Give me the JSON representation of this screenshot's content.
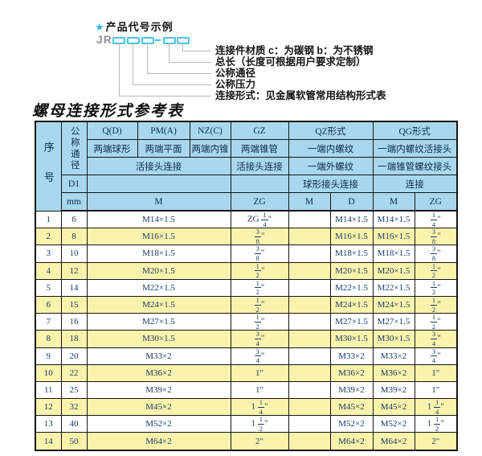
{
  "diagram": {
    "star_icon": "★",
    "example_label": "产品代号示例",
    "code_prefix": "JR",
    "callouts": [
      "连接件材质  c：为碳钢  b：为不锈钢",
      "总长（长度可根据用户要求定制）",
      "公称通径",
      "公称压力",
      "连接形式：见金属软管常用结构形式表"
    ]
  },
  "title": "螺母连接形式参考表",
  "table": {
    "header": {
      "seq": "序号",
      "dn": "公称通径",
      "d1": "D1",
      "mm": "mm",
      "col_q": "Q(D)",
      "col_pm": "PM(A)",
      "col_nz": "NZ(C)",
      "col_gz": "GZ",
      "col_qz": "QZ形式",
      "col_qg": "QG形式",
      "q_desc": "两端球形",
      "pm_desc": "两端平面",
      "nz_desc": "两端内锥",
      "gz_desc": "两端锥管",
      "qz_desc": "一端内螺纹",
      "qg_desc": "一端内螺纹活接头",
      "qpmnz_conn": "活接头连接",
      "gz_conn": "活接头连接",
      "qz_conn": "一端外螺纹",
      "qg_conn": "一端锥管螺纹接头",
      "qz_conn2": "球形接头连接",
      "qg_conn2": "连接",
      "m_label": "M",
      "zg_label": "ZG",
      "qz_m": "M",
      "qz_d": "D",
      "qg_m": "M",
      "qg_zg": "ZG"
    },
    "rows": [
      [
        "1",
        "6",
        "M14×1.5",
        "ZG 1/4\"",
        "",
        "M14×1.5",
        "M14×1.5",
        "1/4\""
      ],
      [
        "2",
        "8",
        "M16×1.5",
        "3/8\"",
        "",
        "M16×1.5",
        "M16×1.5",
        "3/8\""
      ],
      [
        "3",
        "10",
        "M18×1.5",
        "3/8\"",
        "",
        "M18×1.5",
        "M18×1.5",
        "3/8\""
      ],
      [
        "4",
        "12",
        "M20×1.5",
        "1/2\"",
        "",
        "M20×1.5",
        "M20×1.5",
        "1/2\""
      ],
      [
        "5",
        "14",
        "M22×1.5",
        "1/2\"",
        "",
        "M22×1.5",
        "M22×1.5",
        "1/2\""
      ],
      [
        "6",
        "15",
        "M24×1.5",
        "1/2\"",
        "",
        "M24×1.5",
        "M24×1.5",
        "1/2\""
      ],
      [
        "7",
        "16",
        "M27×1.5",
        "1/2\"",
        "",
        "M27×1.5",
        "M27×1.5",
        "1/2\""
      ],
      [
        "8",
        "18",
        "M30×1.5",
        "3/4\"",
        "",
        "M30×1.5",
        "M30×1.5",
        "3/4\""
      ],
      [
        "9",
        "20",
        "M33×2",
        "3/4\"",
        "",
        "M33×2",
        "M33×2",
        "3/4\""
      ],
      [
        "10",
        "22",
        "M36×2",
        "1\"",
        "",
        "M36×2",
        "M36×2",
        "1\""
      ],
      [
        "11",
        "25",
        "M39×2",
        "1\"",
        "",
        "M39×2",
        "M39×2",
        "1\""
      ],
      [
        "12",
        "32",
        "M45×2",
        "1 1/4\"",
        "",
        "M45×2",
        "M45×2",
        "1 1/4\""
      ],
      [
        "13",
        "40",
        "M52×2",
        "1 1/2\"",
        "",
        "M52×2",
        "M52×2",
        "1 1/2\""
      ],
      [
        "14",
        "50",
        "M64×2",
        "2\"",
        "",
        "M64×2",
        "M64×2",
        "2\""
      ]
    ]
  },
  "colors": {
    "header_bg": "#a9d8ee",
    "stripe_bg": "#faf3ac",
    "accent_cyan": "#4cc2e6",
    "value_text": "#1d3a66",
    "border": "#161616"
  }
}
